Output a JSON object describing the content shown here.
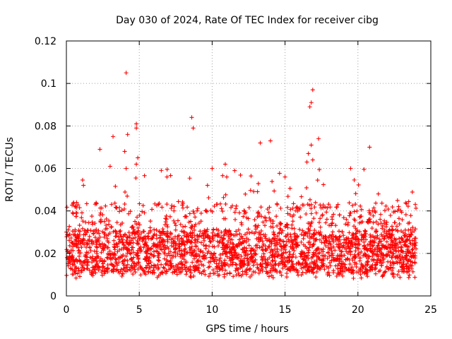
{
  "chart_data": {
    "type": "scatter",
    "title": "Day 030 of 2024, Rate Of TEC Index for receiver cibg",
    "xlabel": "GPS time / hours",
    "ylabel": "ROTI / TECUs",
    "xlim": [
      0,
      25
    ],
    "ylim": [
      0,
      0.12
    ],
    "xticks": [
      0,
      5,
      10,
      15,
      20,
      25
    ],
    "xtick_labels": [
      "0",
      "5",
      "10",
      "15",
      "20",
      "25"
    ],
    "yticks": [
      0,
      0.02,
      0.04,
      0.06,
      0.08,
      0.1,
      0.12
    ],
    "ytick_labels": [
      "0",
      "0.02",
      "0.04",
      "0.06",
      "0.08",
      "0.1",
      "0.12"
    ],
    "grid": true,
    "marker": "plus",
    "color": "#ff0000",
    "series": [
      {
        "name": "ROTI",
        "x_range": [
          0,
          24
        ],
        "typical_band": [
          0.01,
          0.03
        ],
        "outliers": [
          {
            "x": 4.1,
            "y": 0.105
          },
          {
            "x": 16.9,
            "y": 0.097
          },
          {
            "x": 16.8,
            "y": 0.091
          },
          {
            "x": 16.7,
            "y": 0.089
          },
          {
            "x": 8.6,
            "y": 0.084
          },
          {
            "x": 8.7,
            "y": 0.079
          },
          {
            "x": 4.8,
            "y": 0.081
          },
          {
            "x": 4.8,
            "y": 0.079
          },
          {
            "x": 4.2,
            "y": 0.076
          },
          {
            "x": 3.2,
            "y": 0.075
          },
          {
            "x": 17.3,
            "y": 0.074
          },
          {
            "x": 14.0,
            "y": 0.073
          },
          {
            "x": 13.3,
            "y": 0.072
          },
          {
            "x": 16.8,
            "y": 0.071
          },
          {
            "x": 20.8,
            "y": 0.07
          },
          {
            "x": 2.3,
            "y": 0.069
          },
          {
            "x": 4.0,
            "y": 0.068
          },
          {
            "x": 16.6,
            "y": 0.067
          },
          {
            "x": 4.9,
            "y": 0.065
          },
          {
            "x": 16.9,
            "y": 0.064
          },
          {
            "x": 16.5,
            "y": 0.063
          },
          {
            "x": 10.9,
            "y": 0.062
          },
          {
            "x": 4.8,
            "y": 0.062
          },
          {
            "x": 3.0,
            "y": 0.061
          },
          {
            "x": 10.0,
            "y": 0.06
          },
          {
            "x": 4.1,
            "y": 0.06
          },
          {
            "x": 19.5,
            "y": 0.06
          },
          {
            "x": 11.0,
            "y": 0.056
          },
          {
            "x": 15.0,
            "y": 0.056
          },
          {
            "x": 6.9,
            "y": 0.056
          }
        ]
      }
    ]
  }
}
